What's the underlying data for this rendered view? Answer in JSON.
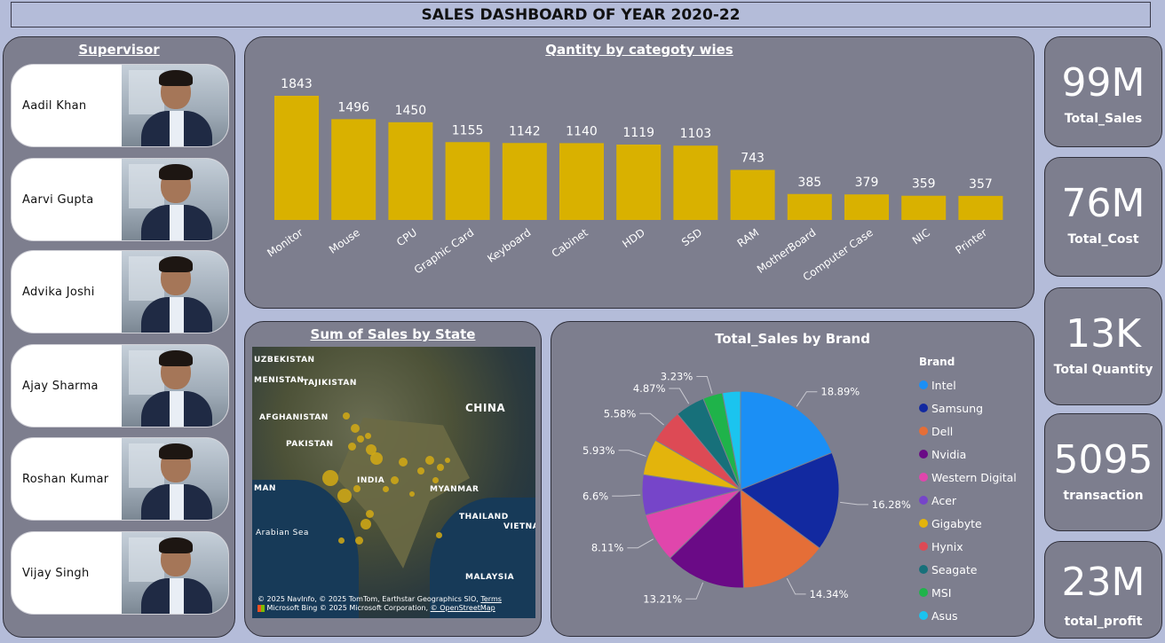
{
  "header": {
    "title": "SALES DASHBOARD OF YEAR 2020-22"
  },
  "supervisor": {
    "title": "Supervisor",
    "people": [
      "Aadil Khan",
      "Aarvi Gupta",
      "Advika Joshi",
      "Ajay Sharma",
      "Roshan Kumar",
      "Vijay Singh"
    ]
  },
  "bar_chart": {
    "title": "Qantity by categoty wies"
  },
  "map": {
    "title": "Sum of Sales by State",
    "labels": [
      "UZBEKISTAN",
      "MENISTAN",
      "TAJIKISTAN",
      "AFGHANISTAN",
      "CHINA",
      "PAKISTAN",
      "INDIA",
      "MYANMAR",
      "MAN",
      "THAILAND",
      "VIETNA",
      "Arabian Sea",
      "MALAYSIA"
    ],
    "copyright_1": "© 2025 NavInfo, © 2025 TomTom, Earthstar Geographics SIO,",
    "copyright_terms": "Terms",
    "copyright_brand": "Microsoft Bing",
    "copyright_2": "© 2025 Microsoft Corporation,",
    "copyright_osm": "© OpenStreetMap"
  },
  "pie_chart": {
    "title": "Total_Sales by Brand",
    "legend_title": "Brand"
  },
  "kpis": [
    {
      "value": "99M",
      "label": "Total_Sales"
    },
    {
      "value": "76M",
      "label": "Total_Cost"
    },
    {
      "value": "13K",
      "label": "Total Quantity"
    },
    {
      "value": "5095",
      "label": "transaction"
    },
    {
      "value": "23M",
      "label": "total_profit"
    }
  ],
  "chart_data": [
    {
      "type": "bar",
      "title": "Qantity by categoty wies",
      "categories": [
        "Monitor",
        "Mouse",
        "CPU",
        "Graphic Card",
        "Keyboard",
        "Cabinet",
        "HDD",
        "SSD",
        "RAM",
        "MotherBoard",
        "Computer Case",
        "NIC",
        "Printer"
      ],
      "values": [
        1843,
        1496,
        1450,
        1155,
        1142,
        1140,
        1119,
        1103,
        743,
        385,
        379,
        359,
        357
      ],
      "color": "#d9b100",
      "ylim": [
        0,
        1843
      ],
      "grid": false
    },
    {
      "type": "pie",
      "title": "Total_Sales by Brand",
      "legend_title": "Brand",
      "legend_position": "right",
      "categories": [
        "Intel",
        "Samsung",
        "Dell",
        "Nvidia",
        "Western Digital",
        "Acer",
        "Gigabyte",
        "Hynix",
        "Seagate",
        "MSI",
        "Asus"
      ],
      "values": [
        18.89,
        16.28,
        14.34,
        13.21,
        8.11,
        6.6,
        5.93,
        5.58,
        4.87,
        3.23,
        2.96
      ],
      "value_labels": [
        "18.89%",
        "16.28%",
        "14.34%",
        "13.21%",
        "8.11%",
        "6.6%",
        "5.93%",
        "5.58%",
        "4.87%",
        "3.23%",
        ""
      ],
      "colors": [
        "#1b8ff5",
        "#1229a0",
        "#e56e37",
        "#6a0a86",
        "#e046ac",
        "#7645c9",
        "#e3b40c",
        "#dd4a55",
        "#17707a",
        "#1fb34a",
        "#1bc4ef"
      ]
    }
  ]
}
